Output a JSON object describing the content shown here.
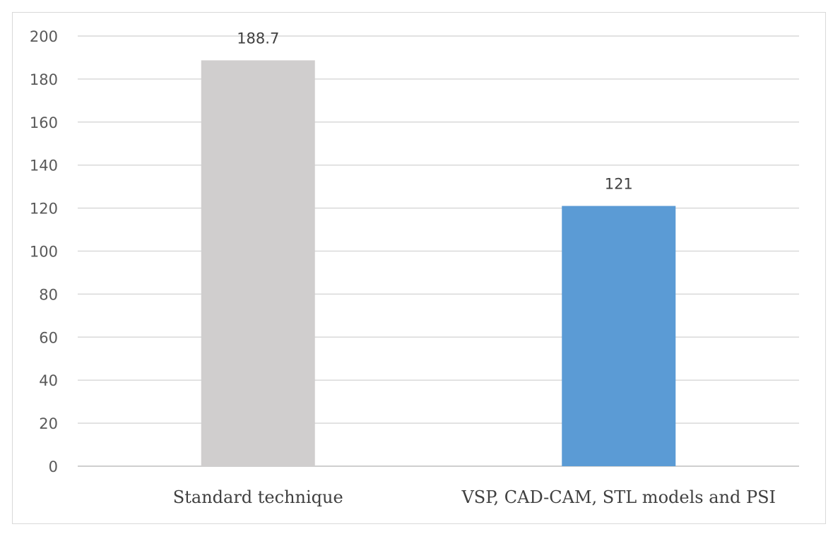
{
  "chart_data": {
    "type": "bar",
    "title": "",
    "xlabel": "",
    "ylabel": "",
    "categories": [
      "Standard technique",
      "VSP, CAD-CAM, STL models and PSI"
    ],
    "values": [
      188.7,
      121
    ],
    "value_labels": [
      "188.7",
      "121"
    ],
    "bar_colors": [
      "#d0cece",
      "#5b9bd5"
    ],
    "ylim": [
      0,
      200
    ],
    "y_ticks": [
      0,
      20,
      40,
      60,
      80,
      100,
      120,
      140,
      160,
      180,
      200
    ],
    "grid": true,
    "legend": "none"
  }
}
